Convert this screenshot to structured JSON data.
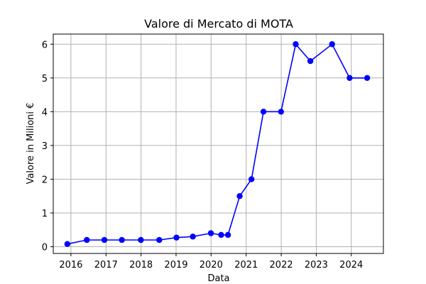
{
  "chart_data": {
    "type": "line",
    "title": "Valore di Mercato di MOTA",
    "xlabel": "Data",
    "ylabel": "Valore in Milioni €",
    "x_ticks": [
      "2016",
      "2017",
      "2018",
      "2019",
      "2020",
      "2021",
      "2022",
      "2023",
      "2024"
    ],
    "y_ticks": [
      "0",
      "1",
      "2",
      "3",
      "4",
      "5",
      "6"
    ],
    "xlim": [
      "2015-07-01",
      "2024-12-01"
    ],
    "ylim": [
      -0.2,
      6.3
    ],
    "grid": true,
    "series": [
      {
        "color": "#0000ff",
        "marker": "circle",
        "points": [
          {
            "x": "2015-11-25",
            "y": 0.08
          },
          {
            "x": "2016-06-15",
            "y": 0.2
          },
          {
            "x": "2016-12-15",
            "y": 0.2
          },
          {
            "x": "2017-06-15",
            "y": 0.2
          },
          {
            "x": "2017-12-30",
            "y": 0.2
          },
          {
            "x": "2018-07-10",
            "y": 0.2
          },
          {
            "x": "2019-01-05",
            "y": 0.27
          },
          {
            "x": "2019-06-25",
            "y": 0.3
          },
          {
            "x": "2019-12-30",
            "y": 0.4
          },
          {
            "x": "2020-04-15",
            "y": 0.35
          },
          {
            "x": "2020-06-25",
            "y": 0.35
          },
          {
            "x": "2020-10-25",
            "y": 1.5
          },
          {
            "x": "2021-02-25",
            "y": 2.0
          },
          {
            "x": "2021-06-30",
            "y": 4.0
          },
          {
            "x": "2021-12-30",
            "y": 4.0
          },
          {
            "x": "2022-06-01",
            "y": 6.0
          },
          {
            "x": "2022-11-01",
            "y": 5.5
          },
          {
            "x": "2023-06-15",
            "y": 6.0
          },
          {
            "x": "2023-12-15",
            "y": 5.0
          },
          {
            "x": "2024-06-15",
            "y": 5.0
          }
        ]
      }
    ]
  }
}
